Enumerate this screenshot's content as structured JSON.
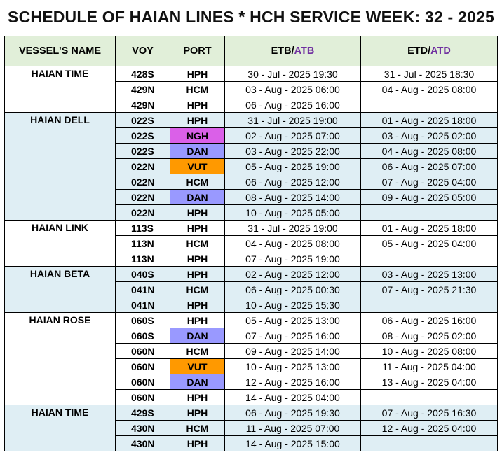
{
  "title": "SCHEDULE OF HAIAN LINES * HCH SERVICE WEEK: 32 - 2025",
  "headers": {
    "vessel": "VESSEL'S NAME",
    "voy": "VOY",
    "port": "PORT",
    "etb_main": "ETB/",
    "etb_accent": "ATB",
    "etd_main": "ETD/",
    "etd_accent": "ATD"
  },
  "colors": {
    "header_bg": "#e1efd9",
    "group_blue": "#dfeef4",
    "accent_text": "#7030a0",
    "port_pink": "#da60e8",
    "port_purple": "#9999ff",
    "port_orange": "#ff9900"
  },
  "groups": [
    {
      "vessel": "HAIAN TIME",
      "shade": "white",
      "rows": [
        {
          "voy": "428S",
          "port": "HPH",
          "color": "",
          "etb": "30 - Jul - 2025 19:30",
          "etd": "31 - Jul - 2025 18:30"
        },
        {
          "voy": "429N",
          "port": "HCM",
          "color": "",
          "etb": "03 - Aug - 2025 06:00",
          "etd": "04 - Aug - 2025 08:00"
        },
        {
          "voy": "429N",
          "port": "HPH",
          "color": "",
          "etb": "06 - Aug - 2025 16:00",
          "etd": ""
        }
      ]
    },
    {
      "vessel": "HAIAN DELL",
      "shade": "blue",
      "rows": [
        {
          "voy": "022S",
          "port": "HPH",
          "color": "",
          "etb": "31 - Jul - 2025 19:00",
          "etd": "01 - Aug - 2025 18:00"
        },
        {
          "voy": "022S",
          "port": "NGH",
          "color": "pink",
          "etb": "02 - Aug - 2025 07:00",
          "etd": "03 - Aug - 2025 02:00"
        },
        {
          "voy": "022S",
          "port": "DAN",
          "color": "purple",
          "etb": "03 - Aug - 2025 22:00",
          "etd": "04 - Aug - 2025 08:00"
        },
        {
          "voy": "022N",
          "port": "VUT",
          "color": "orange",
          "etb": "05 - Aug - 2025 19:00",
          "etd": "06 - Aug - 2025 07:00"
        },
        {
          "voy": "022N",
          "port": "HCM",
          "color": "",
          "etb": "06 - Aug - 2025 12:00",
          "etd": "07 - Aug - 2025 04:00"
        },
        {
          "voy": "022N",
          "port": "DAN",
          "color": "purple",
          "etb": "08 - Aug - 2025 14:00",
          "etd": "09 - Aug - 2025 05:00"
        },
        {
          "voy": "022N",
          "port": "HPH",
          "color": "",
          "etb": "10 - Aug - 2025 05:00",
          "etd": ""
        }
      ]
    },
    {
      "vessel": "HAIAN LINK",
      "shade": "white",
      "rows": [
        {
          "voy": "113S",
          "port": "HPH",
          "color": "",
          "etb": "31 - Jul - 2025 19:00",
          "etd": "01 - Aug - 2025 18:00"
        },
        {
          "voy": "113N",
          "port": "HCM",
          "color": "",
          "etb": "04 - Aug - 2025 08:00",
          "etd": "05 - Aug - 2025 04:00"
        },
        {
          "voy": "113N",
          "port": "HPH",
          "color": "",
          "etb": "07 - Aug - 2025 19:00",
          "etd": ""
        }
      ]
    },
    {
      "vessel": "HAIAN BETA",
      "shade": "blue",
      "rows": [
        {
          "voy": "040S",
          "port": "HPH",
          "color": "",
          "etb": "02 - Aug - 2025 12:00",
          "etd": "03 - Aug - 2025 13:00"
        },
        {
          "voy": "041N",
          "port": "HCM",
          "color": "",
          "etb": "06 - Aug - 2025 00:30",
          "etd": "07 - Aug - 2025 21:30"
        },
        {
          "voy": "041N",
          "port": "HPH",
          "color": "",
          "etb": "10 - Aug - 2025 15:30",
          "etd": ""
        }
      ]
    },
    {
      "vessel": "HAIAN ROSE",
      "shade": "white",
      "rows": [
        {
          "voy": "060S",
          "port": "HPH",
          "color": "",
          "etb": "05 - Aug - 2025 13:00",
          "etd": "06 - Aug - 2025 16:00"
        },
        {
          "voy": "060S",
          "port": "DAN",
          "color": "purple",
          "etb": "07 - Aug - 2025 16:00",
          "etd": "08 - Aug - 2025 02:00"
        },
        {
          "voy": "060N",
          "port": "HCM",
          "color": "",
          "etb": "09 - Aug - 2025 14:00",
          "etd": "10 - Aug - 2025 08:00"
        },
        {
          "voy": "060N",
          "port": "VUT",
          "color": "orange",
          "etb": "10 - Aug - 2025 13:00",
          "etd": "11 - Aug - 2025 04:00"
        },
        {
          "voy": "060N",
          "port": "DAN",
          "color": "purple",
          "etb": "12 - Aug - 2025 16:00",
          "etd": "13 - Aug - 2025 04:00"
        },
        {
          "voy": "060N",
          "port": "HPH",
          "color": "",
          "etb": "14 - Aug - 2025 04:00",
          "etd": ""
        }
      ]
    },
    {
      "vessel": "HAIAN TIME",
      "shade": "blue",
      "rows": [
        {
          "voy": "429S",
          "port": "HPH",
          "color": "",
          "etb": "06 - Aug - 2025 19:30",
          "etd": "07 - Aug - 2025 16:30"
        },
        {
          "voy": "430N",
          "port": "HCM",
          "color": "",
          "etb": "11 - Aug - 2025 07:00",
          "etd": "12 - Aug - 2025 04:00"
        },
        {
          "voy": "430N",
          "port": "HPH",
          "color": "",
          "etb": "14 - Aug - 2025 15:00",
          "etd": ""
        }
      ]
    }
  ]
}
